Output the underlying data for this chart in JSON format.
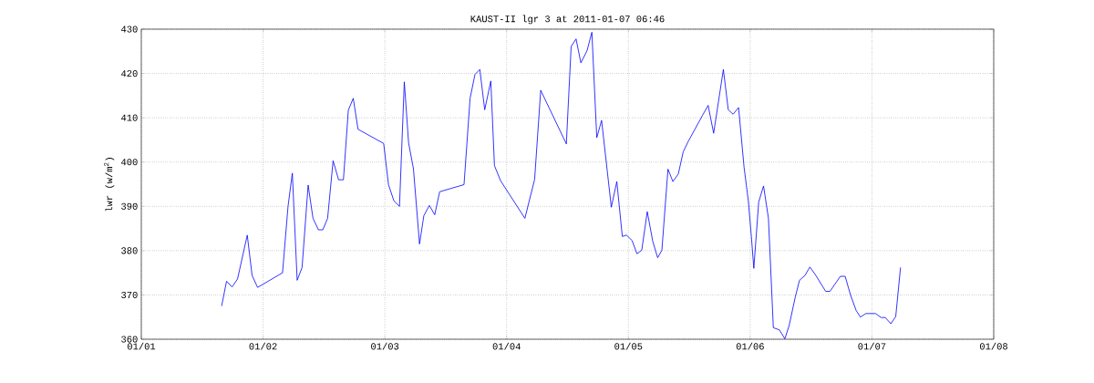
{
  "chart_data": {
    "type": "line",
    "title": "KAUST-II lgr 3 at 2011-01-07 06:46",
    "ylabel": "lwr (w/m$^{2}$)",
    "xlim": [
      "2011-01-01",
      "2011-01-08"
    ],
    "ylim": [
      360,
      430
    ],
    "xticks": [
      {
        "value": "2011-01-01",
        "label": "01/01"
      },
      {
        "value": "2011-01-02",
        "label": "01/02"
      },
      {
        "value": "2011-01-03",
        "label": "01/03"
      },
      {
        "value": "2011-01-04",
        "label": "01/04"
      },
      {
        "value": "2011-01-05",
        "label": "01/05"
      },
      {
        "value": "2011-01-06",
        "label": "01/06"
      },
      {
        "value": "2011-01-07",
        "label": "01/07"
      },
      {
        "value": "2011-01-08",
        "label": "01/08"
      }
    ],
    "yticks": [
      360,
      370,
      380,
      390,
      400,
      410,
      420,
      430
    ],
    "grid": true,
    "line_style": "solid",
    "marker": "none",
    "series": [
      {
        "color": "#0000ff",
        "x": [
          "2011-01-01T15:50",
          "2011-01-01T16:48",
          "2011-01-01T17:53",
          "2011-01-01T18:58",
          "2011-01-01T20:53",
          "2011-01-01T21:50",
          "2011-01-01T22:55",
          "2011-01-02T03:50",
          "2011-01-02T04:55",
          "2011-01-02T05:46",
          "2011-01-02T06:43",
          "2011-01-02T07:41",
          "2011-01-02T08:53",
          "2011-01-02T09:50",
          "2011-01-02T10:55",
          "2011-01-02T11:46",
          "2011-01-02T12:43",
          "2011-01-02T13:48",
          "2011-01-02T14:53",
          "2011-01-02T15:50",
          "2011-01-02T16:48",
          "2011-01-02T17:46",
          "2011-01-02T18:43",
          "2011-01-02T23:46",
          "2011-01-03T00:43",
          "2011-01-03T01:48",
          "2011-01-03T02:53",
          "2011-01-03T03:50",
          "2011-01-03T04:41",
          "2011-01-03T05:38",
          "2011-01-03T06:50",
          "2011-01-03T07:41",
          "2011-01-03T08:46",
          "2011-01-03T09:50",
          "2011-01-03T10:48",
          "2011-01-03T15:36",
          "2011-01-03T16:48",
          "2011-01-03T17:46",
          "2011-01-03T18:43",
          "2011-01-03T19:41",
          "2011-01-03T20:53",
          "2011-01-03T21:36",
          "2011-01-03T22:48",
          "2011-01-04T03:36",
          "2011-01-04T05:31",
          "2011-01-04T06:43",
          "2011-01-04T11:46",
          "2011-01-04T12:43",
          "2011-01-04T13:41",
          "2011-01-04T14:38",
          "2011-01-04T15:50",
          "2011-01-04T16:48",
          "2011-01-04T17:46",
          "2011-01-04T18:43",
          "2011-01-04T20:38",
          "2011-01-04T21:43",
          "2011-01-04T22:48",
          "2011-01-04T23:38",
          "2011-01-05T00:43",
          "2011-01-05T01:41",
          "2011-01-05T02:38",
          "2011-01-05T03:43",
          "2011-01-05T04:48",
          "2011-01-05T05:46",
          "2011-01-05T06:36",
          "2011-01-05T07:48",
          "2011-01-05T08:46",
          "2011-01-05T09:50",
          "2011-01-05T10:48",
          "2011-01-05T11:46",
          "2011-01-05T14:38",
          "2011-01-05T15:43",
          "2011-01-05T16:48",
          "2011-01-05T18:43",
          "2011-01-05T19:41",
          "2011-01-05T20:38",
          "2011-01-05T21:43",
          "2011-01-05T22:48",
          "2011-01-05T23:38",
          "2011-01-06T00:14",
          "2011-01-06T00:43",
          "2011-01-06T01:41",
          "2011-01-06T02:38",
          "2011-01-06T03:36",
          "2011-01-06T04:34",
          "2011-01-06T05:46",
          "2011-01-06T06:50",
          "2011-01-06T07:41",
          "2011-01-06T08:53",
          "2011-01-06T09:43",
          "2011-01-06T10:48",
          "2011-01-06T11:46",
          "2011-01-06T12:50",
          "2011-01-06T14:53",
          "2011-01-06T15:43",
          "2011-01-06T17:46",
          "2011-01-06T18:43",
          "2011-01-06T19:48",
          "2011-01-06T20:53",
          "2011-01-06T21:43",
          "2011-01-06T22:48",
          "2011-01-07T00:43",
          "2011-01-07T01:48",
          "2011-01-07T02:38",
          "2011-01-07T03:43",
          "2011-01-07T04:41",
          "2011-01-07T05:38"
        ],
        "values": [
          367.5,
          373.1,
          371.8,
          373.6,
          383.5,
          374.4,
          371.7,
          375.0,
          390.0,
          397.5,
          373.3,
          376.2,
          394.8,
          387.3,
          384.7,
          384.7,
          387.3,
          400.3,
          396.0,
          396.0,
          411.7,
          414.4,
          407.4,
          404.2,
          394.9,
          391.2,
          390.0,
          418.1,
          404.3,
          398.5,
          381.5,
          387.9,
          390.2,
          388.1,
          393.3,
          394.9,
          414.4,
          419.8,
          420.9,
          411.8,
          418.3,
          399.2,
          395.8,
          387.3,
          396.1,
          416.2,
          404.1,
          426.1,
          427.8,
          422.4,
          425.1,
          429.3,
          405.5,
          409.4,
          389.8,
          395.6,
          383.2,
          383.5,
          382.3,
          379.3,
          380.1,
          388.8,
          382.1,
          378.4,
          380.1,
          398.4,
          395.6,
          397.3,
          402.3,
          404.6,
          410.6,
          412.8,
          406.5,
          420.9,
          411.8,
          410.8,
          412.3,
          398.8,
          391.3,
          383.2,
          376.0,
          391.0,
          394.6,
          387.3,
          362.6,
          362.1,
          360.1,
          363.1,
          369.5,
          373.3,
          374.4,
          376.3,
          374.6,
          370.8,
          370.8,
          374.2,
          374.2,
          369.9,
          366.5,
          365.0,
          365.8,
          365.8,
          364.9,
          364.9,
          363.5,
          365.1,
          376.2
        ]
      }
    ]
  }
}
